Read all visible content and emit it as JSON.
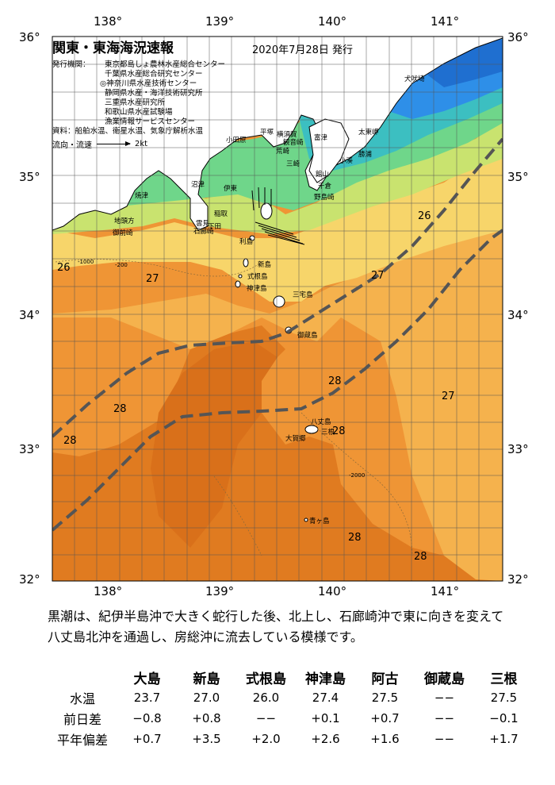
{
  "header": {
    "title": "関東・東海海況速報",
    "date": "2020年7月28日 発行",
    "publisher_label": "発行機関：",
    "publishers": [
      "東京都島しょ農林水産総合センター",
      "千葉県水産総合研究センター",
      "◎神奈川県水産技術センター",
      "静岡県水産・海洋技術研究所",
      "三重県水産研究所",
      "和歌山県水産試験場",
      "漁業情報サービスセンター"
    ],
    "source_label": "資料：",
    "source": "船舶水温、衛星水温、気象庁解析水温",
    "legend_label": "流向・流速",
    "legend_value": "2kt"
  },
  "axes": {
    "lon_labels": [
      "138°",
      "139°",
      "140°",
      "141°"
    ],
    "lat_labels": [
      "36°",
      "35°",
      "34°",
      "33°",
      "32°"
    ]
  },
  "places": [
    "犬吠埼",
    "太東岬",
    "勝浦",
    "小湊",
    "平塚",
    "横須賀",
    "観音崎",
    "富津",
    "荒崎",
    "三崎",
    "館山",
    "千倉",
    "野島崎",
    "小田原",
    "伊東",
    "稲取",
    "下田",
    "石廊崎",
    "雲見",
    "沼津",
    "焼津",
    "御前崎",
    "地頭方",
    "利島",
    "新島",
    "式根島",
    "神津島",
    "三宅島",
    "御蔵島",
    "八丈島",
    "三根",
    "大賀郷",
    "青ヶ島"
  ],
  "isotherms": [
    "26",
    "27",
    "28"
  ],
  "depth_labels": [
    "-1000",
    "-200",
    "-2000"
  ],
  "colors": {
    "sea_28_plus": "#e07b20",
    "sea_28": "#ef9535",
    "sea_27": "#f5b24d",
    "sea_26": "#f7d56a",
    "sea_25": "#c9e36f",
    "sea_24": "#6fd68a",
    "sea_23": "#3cbfc1",
    "sea_22": "#2e8fe8",
    "kuroshio_axis": "#555555",
    "land": "#ffffff"
  },
  "description": "黒潮は、紀伊半島沖で大きく蛇行した後、北上し、石廊崎沖で東に向きを変えて八丈島北沖を通過し、房総沖に流去している模様です。",
  "observations": {
    "stations": [
      "大島",
      "新島",
      "式根島",
      "神津島",
      "阿古",
      "御蔵島",
      "三根"
    ],
    "rows": [
      {
        "label": "水温",
        "values": [
          "23.7",
          "27.0",
          "26.0",
          "27.4",
          "27.5",
          "−−",
          "27.5"
        ]
      },
      {
        "label": "前日差",
        "values": [
          "−0.8",
          "+0.8",
          "−−",
          "+0.1",
          "+0.7",
          "−−",
          "−0.1"
        ]
      },
      {
        "label": "平年偏差",
        "values": [
          "+0.7",
          "+3.5",
          "+2.0",
          "+2.6",
          "+1.6",
          "−−",
          "+1.7"
        ]
      }
    ]
  }
}
